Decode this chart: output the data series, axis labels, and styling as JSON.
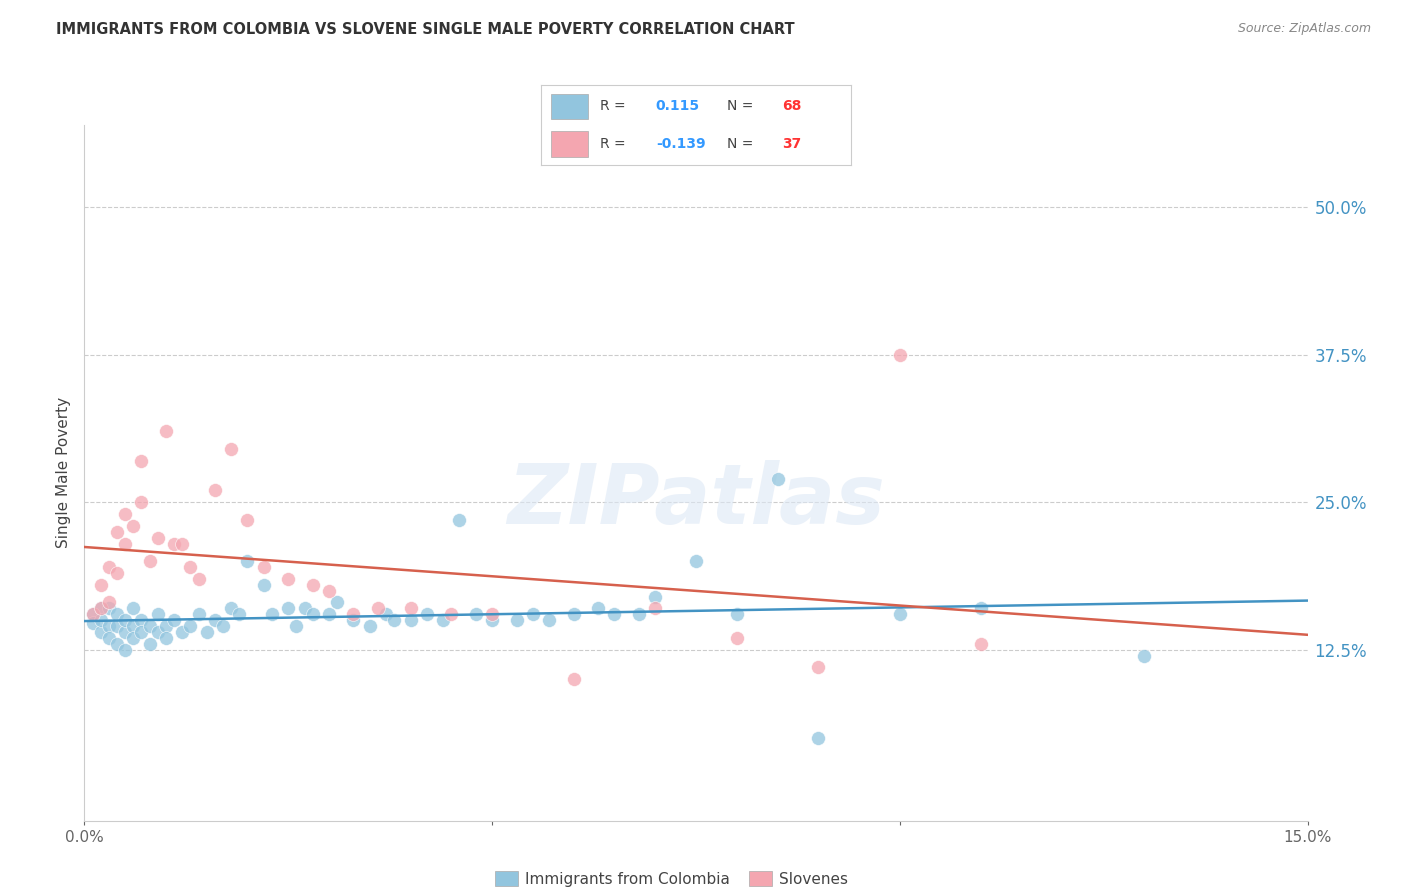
{
  "title": "IMMIGRANTS FROM COLOMBIA VS SLOVENE SINGLE MALE POVERTY CORRELATION CHART",
  "source": "Source: ZipAtlas.com",
  "ylabel": "Single Male Poverty",
  "ytick_labels": [
    "50.0%",
    "37.5%",
    "25.0%",
    "12.5%"
  ],
  "ytick_values": [
    0.5,
    0.375,
    0.25,
    0.125
  ],
  "xlim": [
    0.0,
    0.15
  ],
  "ylim": [
    -0.02,
    0.57
  ],
  "watermark": "ZIPatlas",
  "blue_color": "#92c5de",
  "pink_color": "#f4a6b0",
  "blue_line_color": "#4393c3",
  "pink_line_color": "#d6604d",
  "legend_text_color": "#333333",
  "r1_color": "#3399ff",
  "n1_color": "#ff3333",
  "r2_color": "#3399ff",
  "n2_color": "#ff3333",
  "colombia_x": [
    0.001,
    0.001,
    0.002,
    0.002,
    0.002,
    0.003,
    0.003,
    0.003,
    0.004,
    0.004,
    0.004,
    0.005,
    0.005,
    0.005,
    0.006,
    0.006,
    0.006,
    0.007,
    0.007,
    0.008,
    0.008,
    0.009,
    0.009,
    0.01,
    0.01,
    0.011,
    0.012,
    0.013,
    0.014,
    0.015,
    0.016,
    0.017,
    0.018,
    0.019,
    0.02,
    0.022,
    0.023,
    0.025,
    0.026,
    0.027,
    0.028,
    0.03,
    0.031,
    0.033,
    0.035,
    0.037,
    0.038,
    0.04,
    0.042,
    0.044,
    0.046,
    0.048,
    0.05,
    0.053,
    0.055,
    0.057,
    0.06,
    0.063,
    0.065,
    0.068,
    0.07,
    0.075,
    0.08,
    0.085,
    0.09,
    0.1,
    0.11,
    0.13
  ],
  "colombia_y": [
    0.155,
    0.148,
    0.16,
    0.14,
    0.15,
    0.145,
    0.135,
    0.16,
    0.13,
    0.155,
    0.145,
    0.14,
    0.15,
    0.125,
    0.145,
    0.16,
    0.135,
    0.15,
    0.14,
    0.145,
    0.13,
    0.155,
    0.14,
    0.145,
    0.135,
    0.15,
    0.14,
    0.145,
    0.155,
    0.14,
    0.15,
    0.145,
    0.16,
    0.155,
    0.2,
    0.18,
    0.155,
    0.16,
    0.145,
    0.16,
    0.155,
    0.155,
    0.165,
    0.15,
    0.145,
    0.155,
    0.15,
    0.15,
    0.155,
    0.15,
    0.235,
    0.155,
    0.15,
    0.15,
    0.155,
    0.15,
    0.155,
    0.16,
    0.155,
    0.155,
    0.17,
    0.2,
    0.155,
    0.27,
    0.05,
    0.155,
    0.16,
    0.12
  ],
  "slovene_x": [
    0.001,
    0.002,
    0.002,
    0.003,
    0.003,
    0.004,
    0.004,
    0.005,
    0.005,
    0.006,
    0.007,
    0.007,
    0.008,
    0.009,
    0.01,
    0.011,
    0.012,
    0.013,
    0.014,
    0.016,
    0.018,
    0.02,
    0.022,
    0.025,
    0.028,
    0.03,
    0.033,
    0.036,
    0.04,
    0.045,
    0.05,
    0.06,
    0.07,
    0.08,
    0.09,
    0.1,
    0.11
  ],
  "slovene_y": [
    0.155,
    0.16,
    0.18,
    0.165,
    0.195,
    0.19,
    0.225,
    0.215,
    0.24,
    0.23,
    0.25,
    0.285,
    0.2,
    0.22,
    0.31,
    0.215,
    0.215,
    0.195,
    0.185,
    0.26,
    0.295,
    0.235,
    0.195,
    0.185,
    0.18,
    0.175,
    0.155,
    0.16,
    0.16,
    0.155,
    0.155,
    0.1,
    0.16,
    0.135,
    0.11,
    0.375,
    0.13
  ]
}
